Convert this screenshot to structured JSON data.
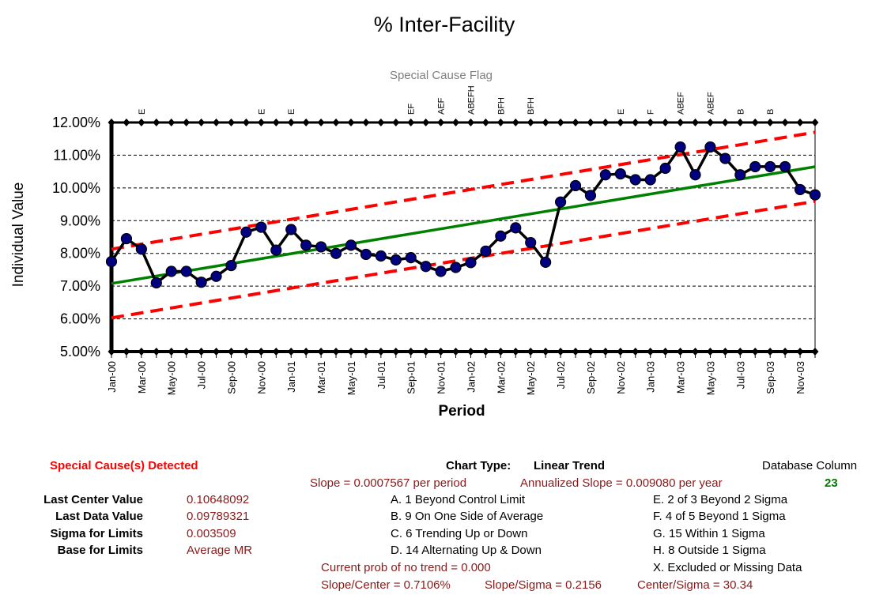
{
  "chart_data": {
    "type": "line",
    "title": "% Inter-Facility",
    "subtitle": "Special Cause Flag",
    "xlabel": "Period",
    "ylabel": "Individual Value",
    "ylim": [
      0.05,
      0.12
    ],
    "yticks": [
      "12.00%",
      "11.00%",
      "10.00%",
      "9.00%",
      "8.00%",
      "7.00%",
      "6.00%",
      "5.00%"
    ],
    "ytick_values": [
      0.12,
      0.11,
      0.1,
      0.09,
      0.08,
      0.07,
      0.06,
      0.05
    ],
    "grid": "horizontal dashed",
    "categories": [
      "Jan-00",
      "Feb-00",
      "Mar-00",
      "Apr-00",
      "May-00",
      "Jun-00",
      "Jul-00",
      "Aug-00",
      "Sep-00",
      "Oct-00",
      "Nov-00",
      "Dec-00",
      "Jan-01",
      "Feb-01",
      "Mar-01",
      "Apr-01",
      "May-01",
      "Jun-01",
      "Jul-01",
      "Aug-01",
      "Sep-01",
      "Oct-01",
      "Nov-01",
      "Dec-01",
      "Jan-02",
      "Feb-02",
      "Mar-02",
      "Apr-02",
      "May-02",
      "Jun-02",
      "Jul-02",
      "Aug-02",
      "Sep-02",
      "Oct-02",
      "Nov-02",
      "Dec-02",
      "Jan-03",
      "Feb-03",
      "Mar-03",
      "Apr-03",
      "May-03",
      "Jun-03",
      "Jul-03",
      "Aug-03",
      "Sep-03",
      "Oct-03",
      "Nov-03",
      "Dec-03"
    ],
    "xtick_labels": [
      "Jan-00",
      "Mar-00",
      "May-00",
      "Jul-00",
      "Sep-00",
      "Nov-00",
      "Jan-01",
      "Mar-01",
      "May-01",
      "Jul-01",
      "Sep-01",
      "Nov-01",
      "Jan-02",
      "Mar-02",
      "May-02",
      "Jul-02",
      "Sep-02",
      "Nov-02",
      "Jan-03",
      "Mar-03",
      "May-03",
      "Jul-03",
      "Sep-03",
      "Nov-03"
    ],
    "series": [
      {
        "values": [
          0.0775,
          0.0845,
          0.0813,
          0.071,
          0.0745,
          0.0745,
          0.0712,
          0.073,
          0.0763,
          0.0865,
          0.088,
          0.081,
          0.0873,
          0.0825,
          0.082,
          0.08,
          0.0825,
          0.0797,
          0.0792,
          0.078,
          0.0787,
          0.076,
          0.0745,
          0.0757,
          0.0772,
          0.0807,
          0.0853,
          0.0878,
          0.0833,
          0.0773,
          0.0957,
          0.1007,
          0.0977,
          0.104,
          0.1043,
          0.1025,
          0.1025,
          0.106,
          0.1125,
          0.104,
          0.1125,
          0.109,
          0.104,
          0.1065,
          0.1065,
          0.1065,
          0.0995,
          0.0979
        ],
        "color": "#000000",
        "marker": "#000080"
      }
    ],
    "center_line": {
      "start": 0.0708,
      "end": 0.10648092,
      "color": "#008000"
    },
    "upper_limit": {
      "start": 0.0813,
      "end": 0.117,
      "color": "#ff0000"
    },
    "lower_limit": {
      "start": 0.0603,
      "end": 0.0959,
      "color": "#ff0000"
    },
    "special_cause_flags": [
      "",
      "",
      "E",
      "",
      "",
      "",
      "",
      "",
      "",
      "",
      "E",
      "",
      "E",
      "",
      "",
      "",
      "",
      "",
      "",
      "",
      "EF",
      "",
      "AEF",
      "",
      "ABEFH",
      "",
      "BFH",
      "",
      "BFH",
      "",
      "",
      "",
      "",
      "",
      "E",
      "",
      "F",
      "",
      "ABEF",
      "",
      "ABEF",
      "",
      "B",
      "",
      "B",
      "",
      "",
      ""
    ]
  },
  "footer": {
    "special_cause": "Special Cause(s) Detected",
    "chart_type_label": "Chart Type:",
    "chart_type_value": "Linear Trend",
    "database_column_label": "Database Column",
    "database_column_value": "23",
    "slope": "Slope = 0.0007567 per period",
    "annualized_slope": "Annualized Slope = 0.009080 per year",
    "stats": [
      {
        "label": "Last Center Value",
        "value": "0.10648092"
      },
      {
        "label": "Last Data Value",
        "value": "0.09789321"
      },
      {
        "label": "Sigma for Limits",
        "value": "0.003509"
      },
      {
        "label": "Base for Limits",
        "value": "Average MR"
      }
    ],
    "rules_left": [
      "A.  1 Beyond Control Limit",
      "B.  9 On One Side of Average",
      "C.  6 Trending Up or Down",
      "D.  14 Alternating  Up & Down"
    ],
    "rules_right": [
      "E.  2 of 3 Beyond 2 Sigma",
      "F.  4 of 5 Beyond 1 Sigma",
      "G.  15 Within 1 Sigma",
      "H.  8 Outside 1 Sigma",
      "X.  Excluded or Missing Data"
    ],
    "prob_no_trend": "Current prob of no trend = 0.000",
    "slope_center": "Slope/Center = 0.7106%",
    "slope_sigma": "Slope/Sigma = 0.2156",
    "center_sigma": "Center/Sigma = 30.34"
  }
}
